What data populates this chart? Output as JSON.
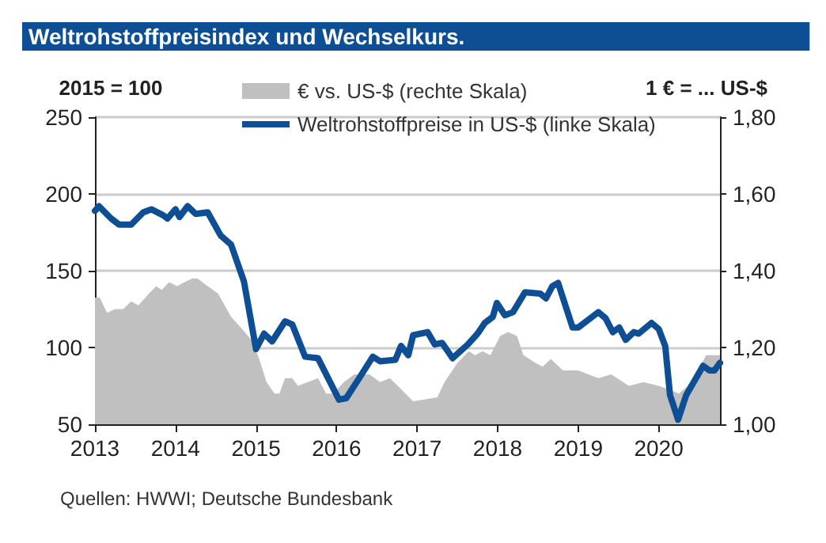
{
  "chart_data": {
    "type": "line",
    "title": "Weltrohstoffpreisindex und Wechselkurs.",
    "ylabel": "2015 = 100",
    "y2label": "1 € = ... US-$",
    "annotations": [
      "Quellen: HWWI; Deutsche Bundesbank"
    ],
    "xlim": [
      2013,
      2020.76
    ],
    "xticks": [
      2013,
      2014,
      2015,
      2016,
      2017,
      2018,
      2019,
      2020
    ],
    "ylim": [
      50,
      250
    ],
    "yticks": [
      50,
      100,
      150,
      200,
      250
    ],
    "y2lim": [
      1.0,
      1.8
    ],
    "y2ticks": [
      {
        "value": 1.0,
        "label": "1,00"
      },
      {
        "value": 1.2,
        "label": "1,20"
      },
      {
        "value": 1.4,
        "label": "1,40"
      },
      {
        "value": 1.6,
        "label": "1,60"
      },
      {
        "value": 1.8,
        "label": "1,80"
      }
    ],
    "grid": "y",
    "legend": "top",
    "marker": "none",
    "line_style": "solid",
    "series": [
      {
        "name": "€ vs. US-$ (rechte Skala)",
        "type": "area",
        "axis": "y2",
        "color": "#c0c0c0",
        "x": [
          2013.0,
          2013.06,
          2013.15,
          2013.25,
          2013.35,
          2013.45,
          2013.54,
          2013.67,
          2013.76,
          2013.83,
          2013.92,
          2014.02,
          2014.11,
          2014.21,
          2014.27,
          2014.4,
          2014.53,
          2014.69,
          2014.82,
          2014.94,
          2015.04,
          2015.13,
          2015.23,
          2015.29,
          2015.36,
          2015.45,
          2015.52,
          2015.64,
          2015.77,
          2015.87,
          2015.96,
          2016.09,
          2016.22,
          2016.41,
          2016.54,
          2016.66,
          2016.76,
          2016.95,
          2017.25,
          2017.34,
          2017.5,
          2017.64,
          2017.72,
          2017.81,
          2017.91,
          2018.03,
          2018.13,
          2018.24,
          2018.32,
          2018.47,
          2018.56,
          2018.66,
          2018.81,
          2019.0,
          2019.25,
          2019.41,
          2019.63,
          2019.81,
          2020.0,
          2020.13,
          2020.25,
          2020.36,
          2020.51,
          2020.59,
          2020.76
        ],
        "values": [
          1.33,
          1.33,
          1.29,
          1.3,
          1.3,
          1.32,
          1.31,
          1.34,
          1.36,
          1.35,
          1.37,
          1.36,
          1.37,
          1.38,
          1.38,
          1.36,
          1.34,
          1.28,
          1.25,
          1.22,
          1.17,
          1.11,
          1.08,
          1.08,
          1.12,
          1.12,
          1.1,
          1.11,
          1.12,
          1.08,
          1.08,
          1.11,
          1.13,
          1.13,
          1.11,
          1.12,
          1.1,
          1.06,
          1.07,
          1.11,
          1.16,
          1.19,
          1.18,
          1.19,
          1.18,
          1.23,
          1.24,
          1.23,
          1.18,
          1.16,
          1.15,
          1.17,
          1.14,
          1.14,
          1.12,
          1.13,
          1.1,
          1.11,
          1.1,
          1.09,
          1.08,
          1.1,
          1.15,
          1.18,
          1.18
        ]
      },
      {
        "name": "Weltrohstoffpreise in US-$ (linke Skala)",
        "color": "#0d4e95",
        "x": [
          2013.0,
          2013.05,
          2013.2,
          2013.3,
          2013.45,
          2013.6,
          2013.7,
          2013.85,
          2013.9,
          2014.0,
          2014.05,
          2014.15,
          2014.25,
          2014.4,
          2014.56,
          2014.69,
          2014.85,
          2015.0,
          2015.1,
          2015.2,
          2015.36,
          2015.45,
          2015.61,
          2015.77,
          2016.03,
          2016.12,
          2016.28,
          2016.45,
          2016.54,
          2016.73,
          2016.8,
          2016.89,
          2016.95,
          2017.13,
          2017.22,
          2017.31,
          2017.44,
          2017.63,
          2017.75,
          2017.84,
          2017.94,
          2017.99,
          2018.09,
          2018.19,
          2018.34,
          2018.53,
          2018.6,
          2018.68,
          2018.75,
          2018.93,
          2019.0,
          2019.25,
          2019.34,
          2019.43,
          2019.51,
          2019.59,
          2019.69,
          2019.75,
          2019.91,
          2020.0,
          2020.08,
          2020.14,
          2020.24,
          2020.34,
          2020.44,
          2020.55,
          2020.63,
          2020.69,
          2020.76
        ],
        "values": [
          189,
          192,
          184,
          180,
          180,
          188,
          190,
          186,
          184,
          190,
          185,
          192,
          187,
          188,
          173,
          167,
          143,
          99,
          109,
          104,
          117,
          115,
          94,
          93,
          66,
          67,
          80,
          94,
          91,
          92,
          101,
          95,
          108,
          110,
          102,
          103,
          93,
          102,
          109,
          116,
          120,
          129,
          121,
          123,
          136,
          135,
          132,
          140,
          142,
          113,
          113,
          123,
          119,
          110,
          113,
          105,
          110,
          109,
          116,
          112,
          101,
          69,
          53,
          69,
          78,
          88,
          85,
          85,
          90
        ]
      }
    ]
  }
}
